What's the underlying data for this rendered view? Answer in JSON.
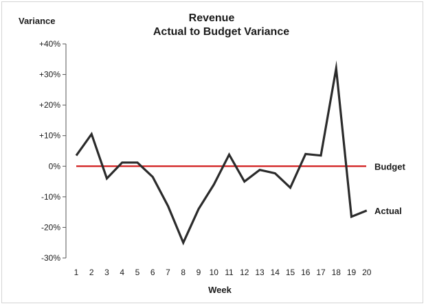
{
  "chart_data": {
    "type": "line",
    "title": "Revenue",
    "subtitle": "Actual to Budget Variance",
    "xlabel": "Week",
    "ylabel": "Variance",
    "ylim": [
      -30,
      40
    ],
    "yticks": [
      40,
      30,
      20,
      10,
      0,
      -10,
      -20,
      -30
    ],
    "ytick_labels": [
      "+40%",
      "+30%",
      "+20%",
      "+10%",
      "0%",
      "-10%",
      "-20%",
      "-30%"
    ],
    "x": [
      1,
      2,
      3,
      4,
      5,
      6,
      7,
      8,
      9,
      10,
      11,
      12,
      13,
      14,
      15,
      16,
      17,
      18,
      19,
      20
    ],
    "x_tick_labels": [
      "1",
      "2",
      "3",
      "4",
      "5",
      "6",
      "7",
      "8",
      "9",
      "10",
      "11",
      "12",
      "13",
      "14",
      "15",
      "16",
      "17",
      "18",
      "19",
      "20"
    ],
    "grid": false,
    "legend": "none",
    "series": [
      {
        "name": "Actual",
        "color": "#2b2b2b",
        "values": [
          3.5,
          10.5,
          -4,
          1.2,
          1.2,
          -3.5,
          -13,
          -25,
          -14,
          -6,
          3.8,
          -5,
          -1.2,
          -2.3,
          -7,
          4,
          3.5,
          32,
          -16.5,
          -14.5
        ]
      },
      {
        "name": "Budget",
        "color": "#d11a1a",
        "values": [
          0,
          0,
          0,
          0,
          0,
          0,
          0,
          0,
          0,
          0,
          0,
          0,
          0,
          0,
          0,
          0,
          0,
          0,
          0,
          0
        ]
      }
    ]
  }
}
